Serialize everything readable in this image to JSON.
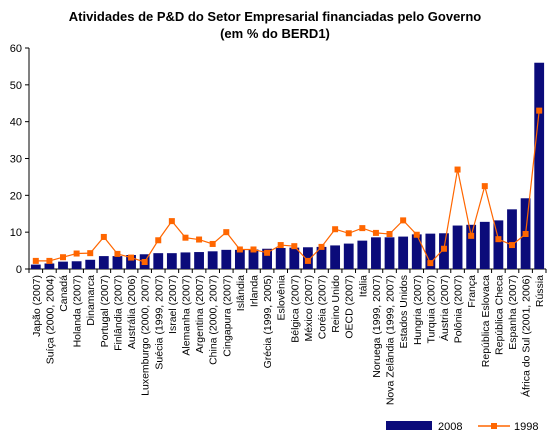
{
  "chart_data": {
    "type": "bar",
    "title": "Atividades de P&D do Setor Empresarial financiadas pelo Governo",
    "subtitle": "(em % do BERD1)",
    "xlabel": "",
    "ylabel": "",
    "ylim": [
      0,
      60
    ],
    "yticks": [
      "0",
      "10",
      "20",
      "30",
      "40",
      "50",
      "60"
    ],
    "grid": false,
    "legend_position": "bottom-right",
    "categories": [
      "Japão (2007)",
      "Suíça (2000, 2004)",
      "Canadá",
      "Holanda (2007)",
      "Dinamarca",
      "Portugal (2007)",
      "Finlândia (2007)",
      "Austrália (2006)",
      "Luxemburgo (2000, 2007)",
      "Suécia (1999, 2007)",
      "Israel (2007)",
      "Alemanha (2007)",
      "Argentina (2007)",
      "China (2000, 2007)",
      "Cingapura (2007)",
      "Islândia",
      "Irlanda",
      "Grécia (1999, 2005)",
      "Eslovênia",
      "Bélgica (2007)",
      "México (2007)",
      "Coréia (2007)",
      "Reino Unido",
      "OECD (2007)",
      "Itália",
      "Noruega (1999, 2007)",
      "Nova Zelândia (1999, 2007)",
      "Estados Unidos",
      "Hungria (2007)",
      "Turquia (2007)",
      "Áustria (2007)",
      "Polônia (2007)",
      "França",
      "República Eslovaca",
      "República Checa",
      "Espanha (2007)",
      "África do Sul (2001, 2006)",
      "Rússia"
    ],
    "series": [
      {
        "name": "2008",
        "kind": "bar",
        "color": "#0b0b7a",
        "values": [
          1.2,
          1.5,
          2.0,
          2.1,
          2.5,
          3.5,
          3.5,
          3.8,
          4.0,
          4.3,
          4.3,
          4.5,
          4.6,
          4.8,
          5.2,
          5.2,
          5.3,
          5.5,
          5.7,
          5.8,
          5.9,
          6.0,
          6.4,
          6.9,
          7.7,
          8.6,
          8.6,
          8.8,
          9.4,
          9.6,
          9.7,
          11.8,
          12.0,
          12.8,
          13.2,
          16.2,
          19.2,
          56.0
        ]
      },
      {
        "name": "1998",
        "kind": "line",
        "color": "#ff6600",
        "values": [
          2.2,
          2.2,
          3.2,
          4.2,
          4.3,
          8.7,
          4.1,
          3.1,
          1.9,
          7.8,
          13.0,
          8.5,
          8.0,
          6.8,
          10.0,
          5.3,
          5.3,
          4.4,
          6.5,
          6.2,
          2.2,
          6.0,
          10.8,
          9.7,
          11.1,
          9.8,
          9.5,
          13.2,
          9.3,
          1.6,
          5.5,
          27.0,
          9.0,
          22.5,
          8.1,
          6.5,
          9.5,
          43.0
        ]
      }
    ]
  }
}
